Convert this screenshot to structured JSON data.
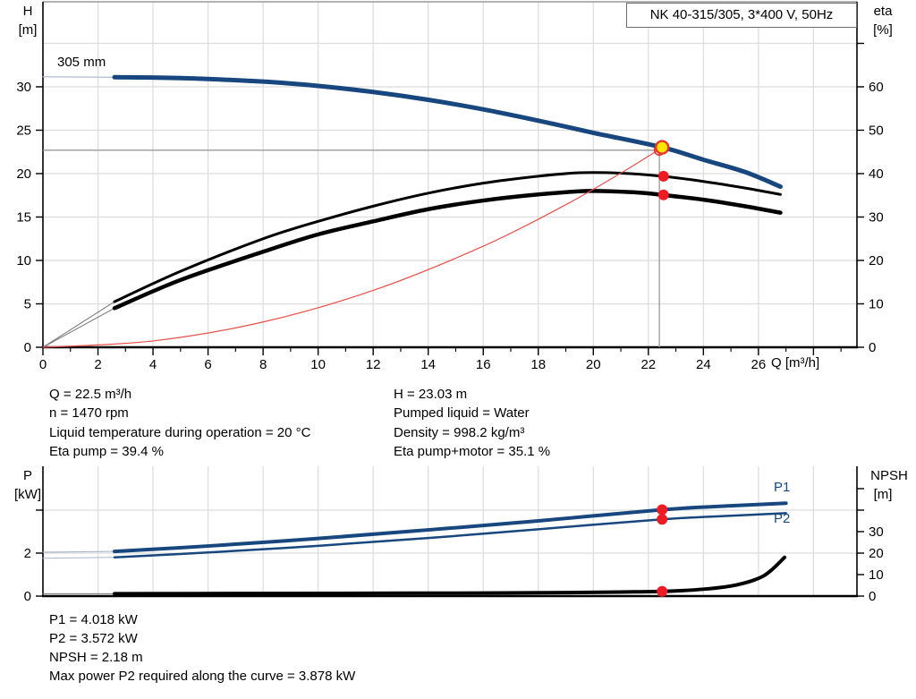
{
  "header": {
    "title": "NK 40-315/305, 3*400 V, 50Hz"
  },
  "impeller_label": "305 mm",
  "axis_labels": {
    "h_symbol": "H",
    "h_unit": "[m]",
    "eta_symbol": "eta",
    "eta_unit": "[%]",
    "q": "Q [m³/h]",
    "p_symbol": "P",
    "p_unit": "[kW]",
    "npsh_symbol": "NPSH",
    "npsh_unit": "[m]"
  },
  "curve_labels": {
    "p1": "P1",
    "p2": "P2"
  },
  "info_top": {
    "left": [
      "Q = 22.5 m³/h",
      "n = 1470 rpm",
      "Liquid temperature during operation = 20 °C",
      "Eta pump = 39.4 %"
    ],
    "right": [
      "H = 23.03 m",
      "Pumped liquid = Water",
      "Density = 998.2 kg/m³",
      "Eta pump+motor = 35.1 %"
    ]
  },
  "info_bottom": [
    "P1 = 4.018 kW",
    "P2 = 3.572 kW",
    "NPSH = 2.18 m",
    "Max power P2 required along the curve = 3.878 kW"
  ],
  "colors": {
    "curve_blue": "#17477e",
    "curve_blue_lead": "#a9b6cc",
    "curve_black": "#000000",
    "curve_gray_lead": "#757575",
    "system_red": "#e8504a",
    "marker_red": "#ed1c24",
    "marker_yellow": "#ffe400",
    "grid": "#dcdcdc",
    "crosshair": "#9a9a9a"
  },
  "chart_data": [
    {
      "type": "line",
      "name": "head-efficiency-chart",
      "title": "NK 40-315/305, 3*400 V, 50Hz",
      "x_axis": {
        "label": "Q [m³/h]",
        "range": [
          0,
          29.58
        ],
        "major_ticks": [
          0,
          2,
          4,
          6,
          8,
          10,
          12,
          14,
          16,
          18,
          20,
          22,
          24,
          26,
          28
        ],
        "labels": [
          0,
          2,
          4,
          6,
          8,
          10,
          12,
          14,
          16,
          18,
          20,
          22,
          24,
          26
        ],
        "minor_step": 1,
        "minor_max": 29
      },
      "y_left": {
        "label": "H [m]",
        "range": [
          0,
          39.79
        ],
        "ticks": [
          0,
          5,
          10,
          15,
          20,
          25,
          30
        ],
        "labels": [
          0,
          5,
          10,
          15,
          20,
          25,
          30
        ]
      },
      "y_right": {
        "label": "eta [%]",
        "range": [
          0,
          79.58
        ],
        "ticks": [
          0,
          10,
          20,
          30,
          40,
          50,
          60,
          70
        ],
        "labels": [
          0,
          10,
          20,
          30,
          40,
          50,
          60
        ]
      },
      "grid": {
        "vertical": [
          2,
          4,
          6,
          8,
          10,
          12,
          14,
          16,
          18,
          20,
          22,
          24,
          26,
          28
        ],
        "horizontal": [
          5,
          10,
          15,
          20,
          25,
          30,
          35
        ]
      },
      "frame_top": true,
      "series": [
        {
          "name": "head-curve-lead-in",
          "axis": "left",
          "color": "#a9b6cc",
          "width": 1.2,
          "points": [
            [
              0,
              31.15
            ],
            [
              2.6,
              31.1
            ]
          ]
        },
        {
          "name": "head-curve-305mm",
          "axis": "left",
          "color": "#17477e",
          "width": 5,
          "points": [
            [
              2.6,
              31.1
            ],
            [
              5,
              31.0
            ],
            [
              8,
              30.6
            ],
            [
              10,
              30.1
            ],
            [
              12,
              29.4
            ],
            [
              14,
              28.5
            ],
            [
              16,
              27.4
            ],
            [
              18,
              26.1
            ],
            [
              20,
              24.7
            ],
            [
              22.5,
              23.03
            ],
            [
              24,
              21.6
            ],
            [
              25.5,
              20.2
            ],
            [
              26.8,
              18.5
            ]
          ]
        },
        {
          "name": "eta-pump-curve-lead-in",
          "axis": "right",
          "color": "#757575",
          "width": 1,
          "points": [
            [
              0,
              0
            ],
            [
              2.6,
              10.5
            ]
          ]
        },
        {
          "name": "eta-pump-curve",
          "axis": "right",
          "color": "#000000",
          "width": 3,
          "points": [
            [
              2.6,
              10.5
            ],
            [
              5,
              17.5
            ],
            [
              8,
              25
            ],
            [
              10,
              29
            ],
            [
              12,
              32.5
            ],
            [
              14,
              35.5
            ],
            [
              16,
              37.8
            ],
            [
              18,
              39.4
            ],
            [
              19.5,
              40.2
            ],
            [
              21,
              40.1
            ],
            [
              22.5,
              39.4
            ],
            [
              24,
              38.2
            ],
            [
              25.5,
              36.7
            ],
            [
              26.8,
              35.2
            ]
          ]
        },
        {
          "name": "eta-pump-motor-curve-lead-in",
          "axis": "right",
          "color": "#757575",
          "width": 1,
          "points": [
            [
              0,
              0
            ],
            [
              2.6,
              9
            ]
          ]
        },
        {
          "name": "eta-pump-motor-curve",
          "axis": "right",
          "color": "#000000",
          "width": 4.5,
          "points": [
            [
              2.6,
              9
            ],
            [
              5,
              15.5
            ],
            [
              8,
              22
            ],
            [
              10,
              26
            ],
            [
              12,
              29
            ],
            [
              14,
              31.8
            ],
            [
              16,
              33.8
            ],
            [
              18,
              35.2
            ],
            [
              19.8,
              36
            ],
            [
              21.5,
              35.7
            ],
            [
              22.5,
              35.1
            ],
            [
              24,
              34
            ],
            [
              25.5,
              32.5
            ],
            [
              26.8,
              31
            ]
          ]
        },
        {
          "name": "system-curve",
          "axis": "left",
          "color": "#e8504a",
          "width": 1.2,
          "points": [
            [
              0,
              0
            ],
            [
              4,
              0.73
            ],
            [
              8,
              2.91
            ],
            [
              12,
              6.55
            ],
            [
              16,
              11.64
            ],
            [
              19,
              16.42
            ],
            [
              21,
              20.06
            ],
            [
              22.4,
              22.8
            ]
          ]
        }
      ],
      "ref_lines": [
        {
          "name": "duty-flow-line",
          "axis": "left",
          "color": "#9a9a9a",
          "width": 1.3,
          "from": [
            22.4,
            0
          ],
          "to": [
            22.4,
            23.1
          ]
        },
        {
          "name": "duty-head-line",
          "axis": "left",
          "color": "#9a9a9a",
          "width": 1.3,
          "from": [
            0,
            22.7
          ],
          "to": [
            22.4,
            22.7
          ]
        }
      ],
      "markers": [
        {
          "name": "duty-point-requested",
          "q": 22.4,
          "v": 22.7,
          "axis": "left",
          "r": 5.5,
          "fill": "none",
          "stroke": "#e8352c",
          "sw": 1.6
        },
        {
          "name": "duty-point-actual",
          "q": 22.5,
          "v": 23.03,
          "axis": "left",
          "r": 7,
          "fill": "#ffe400",
          "stroke": "#e8352c",
          "sw": 2.4
        },
        {
          "name": "eta-pump-point",
          "q": 22.55,
          "v": 39.4,
          "axis": "right",
          "r": 6,
          "fill": "#ed1c24",
          "stroke": "none",
          "sw": 0
        },
        {
          "name": "eta-pump-motor-point",
          "q": 22.55,
          "v": 35.1,
          "axis": "right",
          "r": 6,
          "fill": "#ed1c24",
          "stroke": "none",
          "sw": 0
        }
      ]
    },
    {
      "type": "line",
      "name": "power-npsh-chart",
      "title": "",
      "x_axis": {
        "label": "",
        "range": [
          0,
          29.58
        ],
        "major_ticks": [],
        "labels": [],
        "minor_step": 0,
        "minor_max": 0
      },
      "y_left": {
        "label": "P [kW]",
        "range": [
          0,
          6.04
        ],
        "ticks": [
          0,
          2,
          4
        ],
        "labels": [
          0,
          2
        ]
      },
      "y_right": {
        "label": "NPSH [m]",
        "range": [
          0,
          60.4
        ],
        "ticks": [
          0,
          10,
          20,
          30,
          40,
          50
        ],
        "labels": [
          0,
          10,
          20,
          30
        ]
      },
      "grid": {
        "vertical": [
          2,
          4,
          6,
          8,
          10,
          12,
          14,
          16,
          18,
          20,
          22,
          24,
          26,
          28
        ],
        "horizontal": [
          2,
          4
        ]
      },
      "frame_top": false,
      "series": [
        {
          "name": "p1-curve-lead-in",
          "axis": "left",
          "color": "#a9b6cc",
          "width": 1.2,
          "points": [
            [
              0,
              2.04
            ],
            [
              2.6,
              2.08
            ]
          ]
        },
        {
          "name": "p1-curve",
          "axis": "left",
          "color": "#17477e",
          "width": 4,
          "points": [
            [
              2.6,
              2.08
            ],
            [
              6,
              2.33
            ],
            [
              10,
              2.68
            ],
            [
              14,
              3.08
            ],
            [
              18,
              3.5
            ],
            [
              22.5,
              4.018
            ],
            [
              25,
              4.2
            ],
            [
              27,
              4.32
            ]
          ]
        },
        {
          "name": "p2-curve-lead-in",
          "axis": "left",
          "color": "#a9b6cc",
          "width": 1,
          "points": [
            [
              0,
              1.76
            ],
            [
              2.6,
              1.8
            ]
          ]
        },
        {
          "name": "p2-curve",
          "axis": "left",
          "color": "#17477e",
          "width": 2.5,
          "points": [
            [
              2.6,
              1.8
            ],
            [
              6,
              2.03
            ],
            [
              10,
              2.34
            ],
            [
              14,
              2.7
            ],
            [
              18,
              3.11
            ],
            [
              22.5,
              3.572
            ],
            [
              25,
              3.74
            ],
            [
              27,
              3.86
            ]
          ]
        },
        {
          "name": "npsh-curve-lead-in",
          "axis": "right",
          "color": "#757575",
          "width": 1,
          "points": [
            [
              0,
              1.1
            ],
            [
              2.6,
              1.1
            ]
          ]
        },
        {
          "name": "npsh-curve",
          "axis": "right",
          "color": "#000000",
          "width": 4,
          "points": [
            [
              2.6,
              1.1
            ],
            [
              8,
              1.2
            ],
            [
              12,
              1.3
            ],
            [
              16,
              1.4
            ],
            [
              19,
              1.6
            ],
            [
              21,
              1.9
            ],
            [
              22.5,
              2.18
            ],
            [
              24,
              3.2
            ],
            [
              25.2,
              5.2
            ],
            [
              26.2,
              9.5
            ],
            [
              26.95,
              18
            ]
          ]
        }
      ],
      "ref_lines": [],
      "markers": [
        {
          "name": "p1-point",
          "q": 22.5,
          "v": 4.018,
          "axis": "left",
          "r": 6,
          "fill": "#ed1c24",
          "stroke": "none",
          "sw": 0
        },
        {
          "name": "p2-point",
          "q": 22.5,
          "v": 3.572,
          "axis": "left",
          "r": 6,
          "fill": "#ed1c24",
          "stroke": "none",
          "sw": 0
        },
        {
          "name": "npsh-point",
          "q": 22.5,
          "v": 2.18,
          "axis": "right",
          "r": 6,
          "fill": "#ed1c24",
          "stroke": "none",
          "sw": 0
        }
      ]
    }
  ]
}
